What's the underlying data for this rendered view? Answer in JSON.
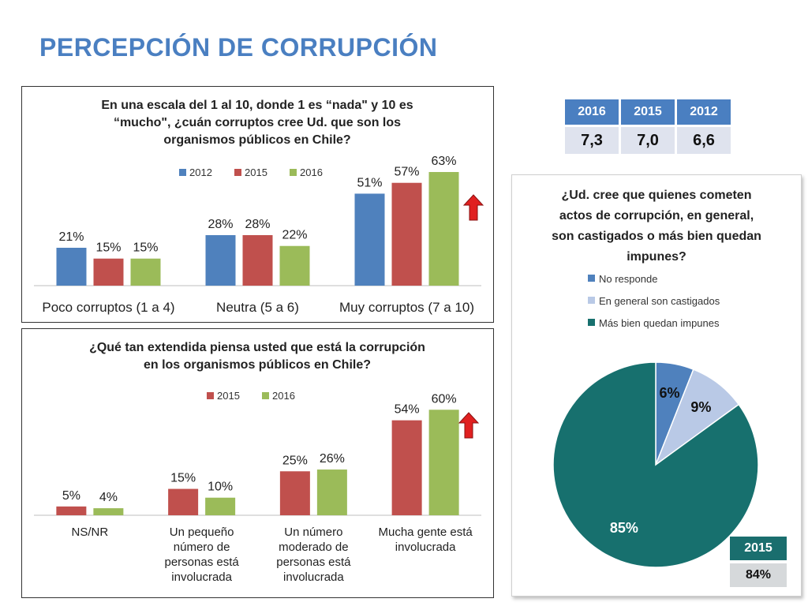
{
  "page": {
    "title": "PERCEPCIÓN DE CORRUPCIÓN"
  },
  "colors": {
    "c2012": "#4f81bd",
    "c2015": "#c0504d",
    "c2016": "#9bbb59",
    "arrow": "#e02020",
    "pie_no": "#4f81bd",
    "pie_cast": "#b9c9e6",
    "pie_imp": "#17706e"
  },
  "score_table": {
    "headers": [
      "2016",
      "2015",
      "2012"
    ],
    "values": [
      "7,3",
      "7,0",
      "6,6"
    ]
  },
  "pie_table": {
    "header": "2015",
    "value": "84%"
  },
  "chart_data": [
    {
      "type": "bar",
      "title": [
        "En una escala del 1 al 10, donde 1 es “nada\" y 10 es",
        "“mucho\", ¿cuán corruptos cree Ud. que son los",
        "organismos públicos en Chile?"
      ],
      "categories": [
        [
          "Poco corruptos (1 a 4)"
        ],
        [
          "Neutra (5 a 6)"
        ],
        [
          "Muy corruptos (7 a 10)"
        ]
      ],
      "series": [
        {
          "name": "2012",
          "values": [
            21,
            28,
            51
          ],
          "labels": [
            "21%",
            "28%",
            "51%"
          ]
        },
        {
          "name": "2015",
          "values": [
            15,
            28,
            57
          ],
          "labels": [
            "15%",
            "28%",
            "57%"
          ]
        },
        {
          "name": "2016",
          "values": [
            15,
            22,
            63
          ],
          "labels": [
            "15%",
            "22%",
            "63%"
          ]
        }
      ],
      "ylim": [
        0,
        70
      ],
      "legend": "top",
      "annotation": "up-arrow"
    },
    {
      "type": "bar",
      "title": [
        "¿Qué tan extendida piensa usted que está la corrupción",
        "en los organismos públicos en Chile?"
      ],
      "categories": [
        [
          "NS/NR"
        ],
        [
          "Un pequeño",
          "número de",
          "personas está",
          "involucrada"
        ],
        [
          "Un número",
          "moderado de",
          "personas está",
          "involucrada"
        ],
        [
          "Mucha gente está",
          "involucrada"
        ]
      ],
      "series": [
        {
          "name": "2015",
          "values": [
            5,
            15,
            25,
            54
          ],
          "labels": [
            "5%",
            "15%",
            "25%",
            "54%"
          ]
        },
        {
          "name": "2016",
          "values": [
            4,
            10,
            26,
            60
          ],
          "labels": [
            "4%",
            "10%",
            "26%",
            "60%"
          ]
        }
      ],
      "ylim": [
        0,
        70
      ],
      "legend": "top",
      "annotation": "up-arrow"
    },
    {
      "type": "pie",
      "title": [
        "¿Ud. cree que quienes cometen",
        "actos de corrupción, en general,",
        "son castigados o más bien quedan",
        "impunes?"
      ],
      "slices": [
        {
          "name": "No responde",
          "value": 6,
          "label": "6%"
        },
        {
          "name": "En general son castigados",
          "value": 9,
          "label": "9%"
        },
        {
          "name": "Más bien quedan impunes",
          "value": 85,
          "label": "85%"
        }
      ],
      "legend": "top"
    }
  ]
}
